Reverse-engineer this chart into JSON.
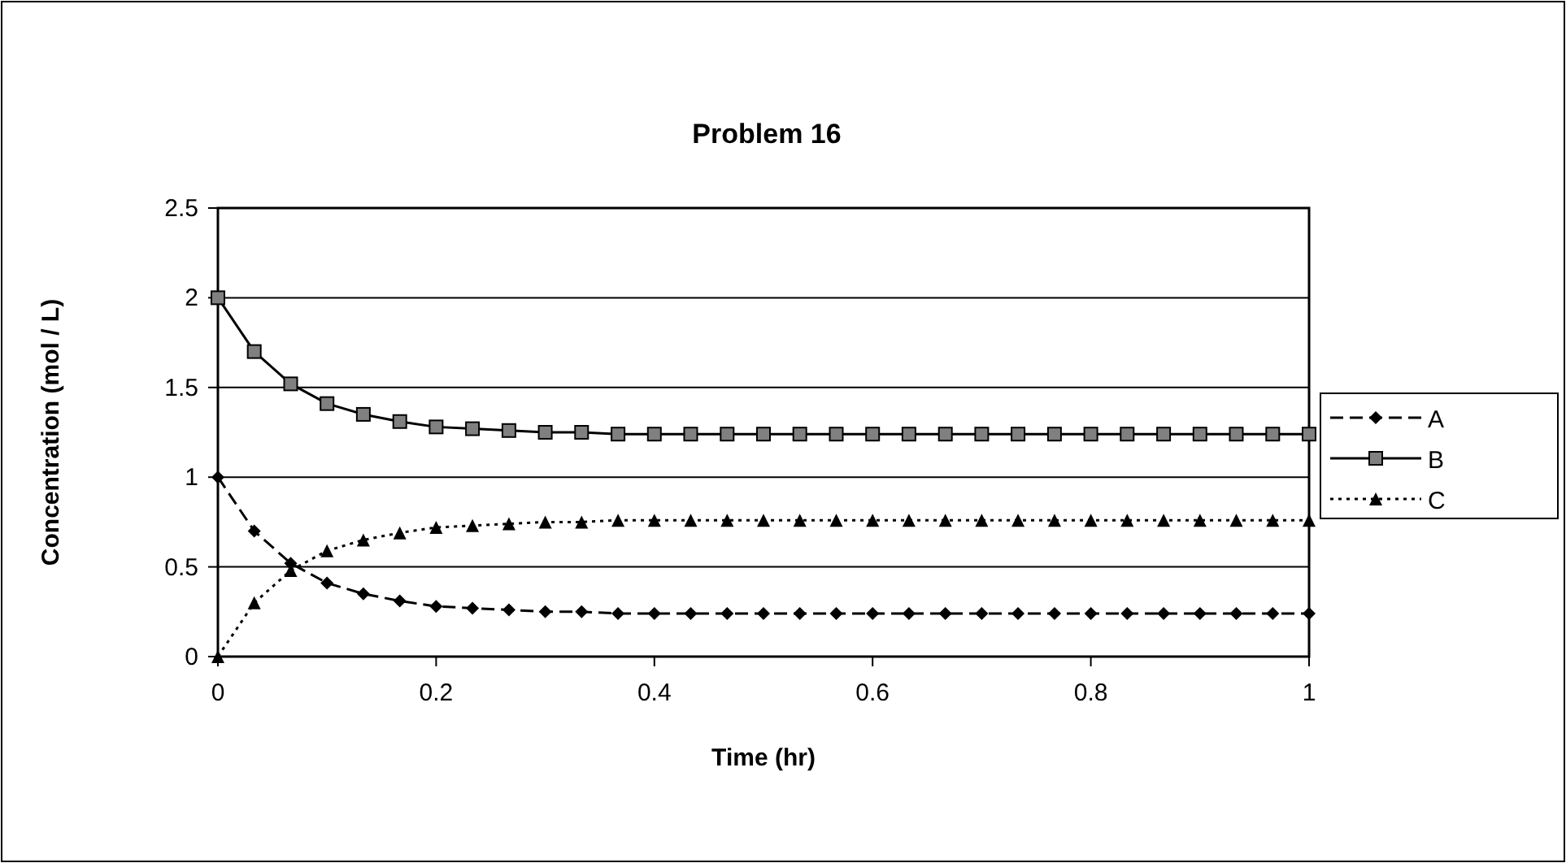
{
  "chart_data": {
    "type": "line",
    "title": "Problem 16",
    "xlabel": "Time (hr)",
    "ylabel": "Concentration (mol / L)",
    "x": [
      0,
      0.0333,
      0.0667,
      0.1,
      0.1333,
      0.1667,
      0.2,
      0.2333,
      0.2667,
      0.3,
      0.3333,
      0.3667,
      0.4,
      0.4333,
      0.4667,
      0.5,
      0.5333,
      0.5667,
      0.6,
      0.6333,
      0.6667,
      0.7,
      0.7333,
      0.7667,
      0.8,
      0.8333,
      0.8667,
      0.9,
      0.9333,
      0.9667,
      1
    ],
    "series": [
      {
        "name": "A",
        "color": "#000000",
        "marker": "diamond",
        "line_style": "dashed",
        "values": [
          1,
          0.7,
          0.52,
          0.41,
          0.35,
          0.31,
          0.28,
          0.27,
          0.26,
          0.25,
          0.25,
          0.24,
          0.24,
          0.24,
          0.24,
          0.24,
          0.24,
          0.24,
          0.24,
          0.24,
          0.24,
          0.24,
          0.24,
          0.24,
          0.24,
          0.24,
          0.24,
          0.24,
          0.24,
          0.24,
          0.24
        ]
      },
      {
        "name": "B",
        "color": "#000000",
        "marker": "square",
        "line_style": "solid",
        "values": [
          2,
          1.7,
          1.52,
          1.41,
          1.35,
          1.31,
          1.28,
          1.27,
          1.26,
          1.25,
          1.25,
          1.24,
          1.24,
          1.24,
          1.24,
          1.24,
          1.24,
          1.24,
          1.24,
          1.24,
          1.24,
          1.24,
          1.24,
          1.24,
          1.24,
          1.24,
          1.24,
          1.24,
          1.24,
          1.24,
          1.24
        ]
      },
      {
        "name": "C",
        "color": "#000000",
        "marker": "triangle",
        "line_style": "dotted",
        "values": [
          0,
          0.3,
          0.48,
          0.59,
          0.65,
          0.69,
          0.72,
          0.73,
          0.74,
          0.75,
          0.75,
          0.76,
          0.76,
          0.76,
          0.76,
          0.76,
          0.76,
          0.76,
          0.76,
          0.76,
          0.76,
          0.76,
          0.76,
          0.76,
          0.76,
          0.76,
          0.76,
          0.76,
          0.76,
          0.76,
          0.76
        ]
      }
    ],
    "xlim": [
      0,
      1
    ],
    "xticks": [
      0,
      0.2,
      0.4,
      0.6,
      0.8,
      1
    ],
    "ylim": [
      0,
      2.5
    ],
    "yticks": [
      0,
      0.5,
      1,
      1.5,
      2,
      2.5
    ],
    "grid": "y",
    "legend": "right"
  }
}
